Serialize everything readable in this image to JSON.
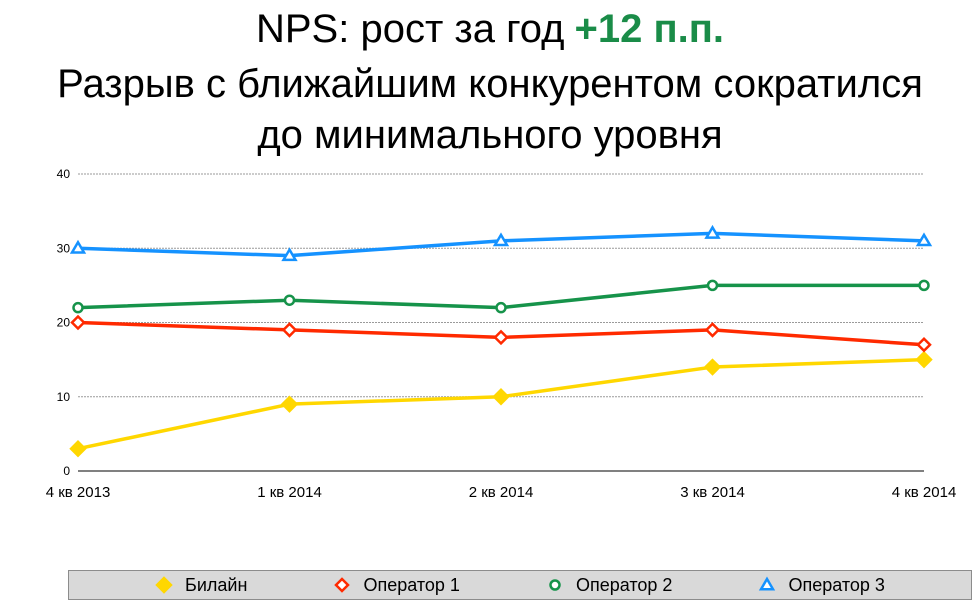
{
  "header": {
    "line1_text": "NPS: рост за год",
    "line1_accent": "+12 п.п.",
    "line2": "Разрыв с ближайшим конкурентом сократился",
    "line3": "до минимального уровня"
  },
  "colors": {
    "accent": "#1a8c48",
    "gridline": "#9a9a9a",
    "axis": "#000000",
    "legend_background": "#d9d9d9"
  },
  "chart_data": {
    "type": "line",
    "categories": [
      "4 кв 2013",
      "1 кв 2014",
      "2 кв 2014",
      "3 кв 2014",
      "4 кв 2014"
    ],
    "ylim": [
      0,
      40
    ],
    "yticks": [
      0,
      10,
      20,
      30,
      40
    ],
    "grid": true,
    "legend_position": "bottom",
    "series": [
      {
        "name": "Билайн",
        "values": [
          3,
          9,
          10,
          14,
          15
        ],
        "color": "#ffd700",
        "marker": "diamond-filled"
      },
      {
        "name": "Оператор 1",
        "values": [
          20,
          19,
          18,
          19,
          17
        ],
        "color": "#ff2a00",
        "marker": "diamond-open"
      },
      {
        "name": "Оператор 2",
        "values": [
          22,
          23,
          22,
          25,
          25
        ],
        "color": "#16934a",
        "marker": "circle-open"
      },
      {
        "name": "Оператор 3",
        "values": [
          30,
          29,
          31,
          32,
          31
        ],
        "color": "#1592ff",
        "marker": "triangle-open"
      }
    ]
  }
}
